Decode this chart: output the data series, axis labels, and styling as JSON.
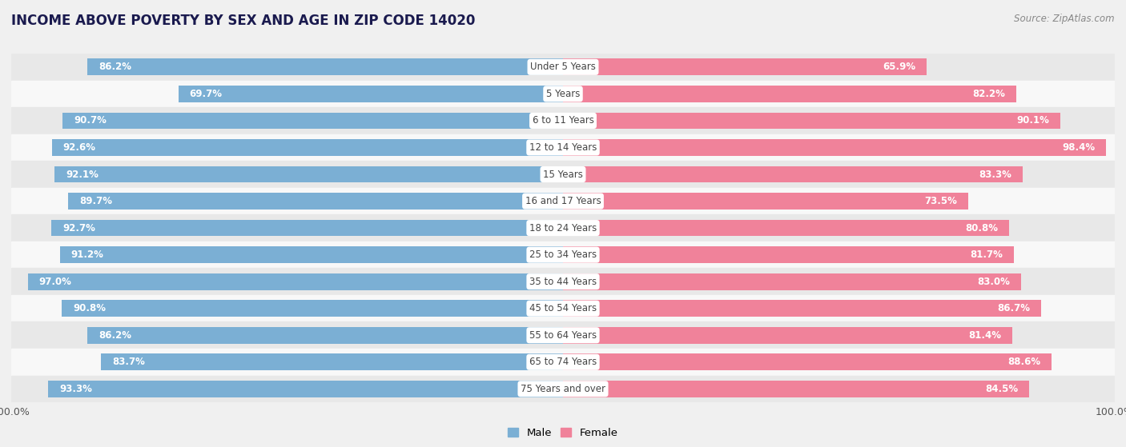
{
  "title": "INCOME ABOVE POVERTY BY SEX AND AGE IN ZIP CODE 14020",
  "source": "Source: ZipAtlas.com",
  "categories": [
    "Under 5 Years",
    "5 Years",
    "6 to 11 Years",
    "12 to 14 Years",
    "15 Years",
    "16 and 17 Years",
    "18 to 24 Years",
    "25 to 34 Years",
    "35 to 44 Years",
    "45 to 54 Years",
    "55 to 64 Years",
    "65 to 74 Years",
    "75 Years and over"
  ],
  "male_values": [
    86.2,
    69.7,
    90.7,
    92.6,
    92.1,
    89.7,
    92.7,
    91.2,
    97.0,
    90.8,
    86.2,
    83.7,
    93.3
  ],
  "female_values": [
    65.9,
    82.2,
    90.1,
    98.4,
    83.3,
    73.5,
    80.8,
    81.7,
    83.0,
    86.7,
    81.4,
    88.6,
    84.5
  ],
  "male_color": "#7bafd4",
  "female_color": "#f0829a",
  "bg_color": "#f0f0f0",
  "row_bg_colors": [
    "#e8e8e8",
    "#f8f8f8"
  ],
  "bar_height": 0.62,
  "max_value": 100.0,
  "title_fontsize": 12,
  "label_fontsize": 8.5,
  "category_fontsize": 8.5,
  "source_fontsize": 8.5,
  "tick_fontsize": 9
}
